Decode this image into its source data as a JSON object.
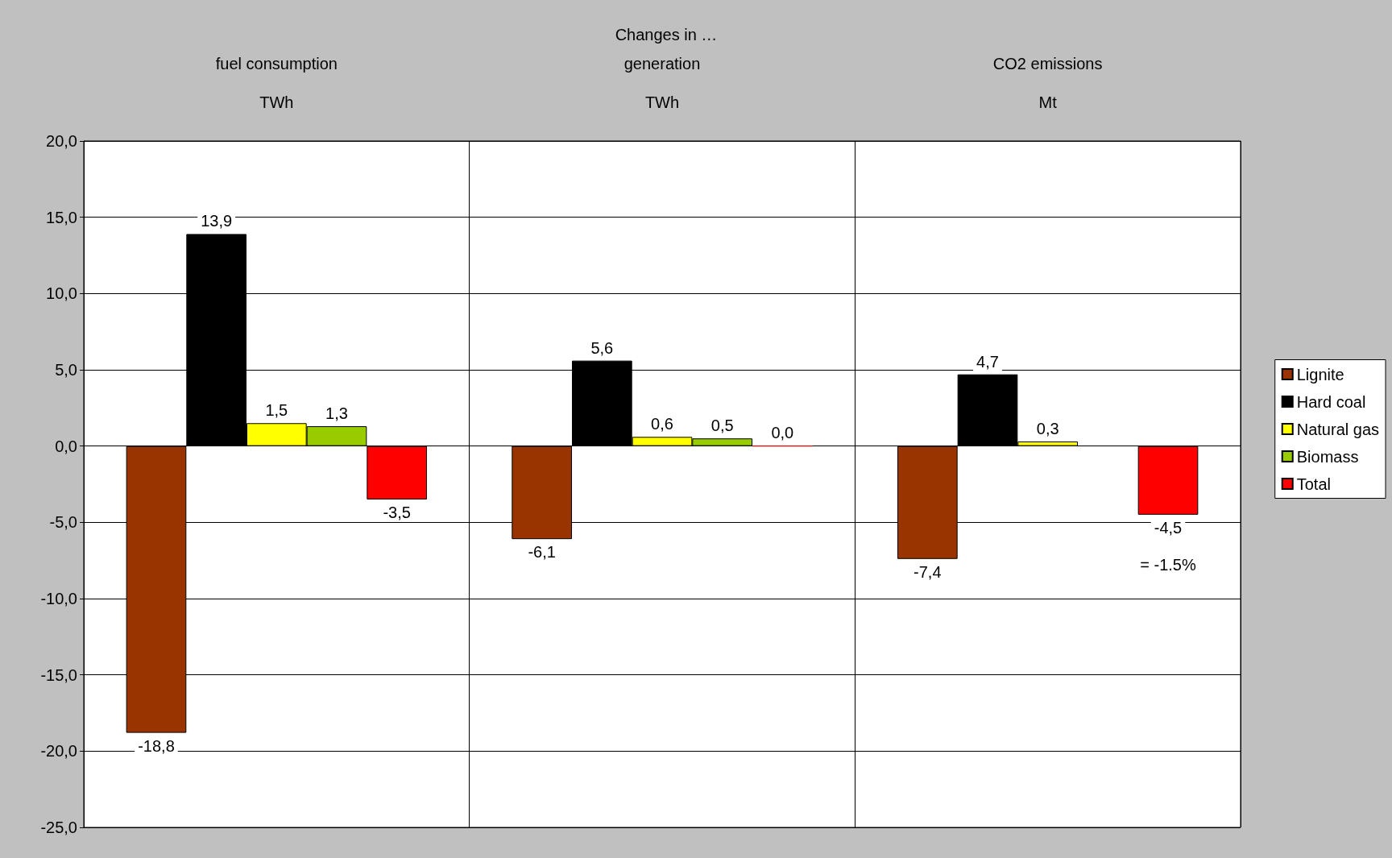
{
  "chart_data": {
    "type": "bar",
    "title": "Changes in …",
    "categories": [
      "fuel consumption\nTWh",
      "generation\nTWh",
      "CO2 emissions\nMt"
    ],
    "series": [
      {
        "name": "Lignite",
        "color": "#993300",
        "values": [
          -18.8,
          -6.1,
          -7.4
        ],
        "value_labels": [
          "-18,8",
          "-6,1",
          "-7,4"
        ]
      },
      {
        "name": "Hard coal",
        "color": "#000000",
        "values": [
          13.9,
          5.6,
          4.7
        ],
        "value_labels": [
          "13,9",
          "5,6",
          "4,7"
        ]
      },
      {
        "name": "Natural gas",
        "color": "#ffff00",
        "values": [
          1.5,
          0.6,
          0.3
        ],
        "value_labels": [
          "1,5",
          "0,6",
          "0,3"
        ]
      },
      {
        "name": "Biomass",
        "color": "#99cc00",
        "values": [
          1.3,
          0.5,
          null
        ],
        "value_labels": [
          "1,3",
          "0,5",
          null
        ]
      },
      {
        "name": "Total",
        "color": "#ff0000",
        "values": [
          -3.5,
          0.0,
          -4.5
        ],
        "value_labels": [
          "-3,5",
          "0,0",
          "-4,5"
        ]
      }
    ],
    "ylim": [
      -25,
      20
    ],
    "yticks": [
      {
        "value": -25,
        "label": "-25,0"
      },
      {
        "value": -20,
        "label": "-20,0"
      },
      {
        "value": -15,
        "label": "-15,0"
      },
      {
        "value": -10,
        "label": "-10,0"
      },
      {
        "value": -5,
        "label": "-5,0"
      },
      {
        "value": 0,
        "label": "0,0"
      },
      {
        "value": 5,
        "label": "5,0"
      },
      {
        "value": 10,
        "label": "10,0"
      },
      {
        "value": 15,
        "label": "15,0"
      },
      {
        "value": 20,
        "label": "20,0"
      }
    ],
    "grid": true,
    "legend": "right",
    "annotations": [
      "= -1.5%"
    ]
  }
}
